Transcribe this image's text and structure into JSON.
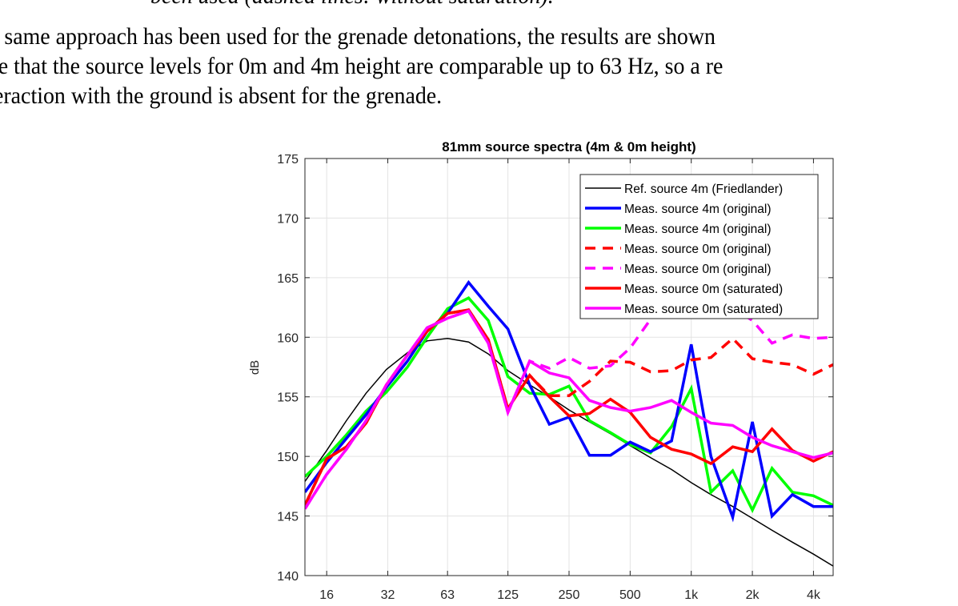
{
  "document": {
    "cut_line": "been used (dashed lines: without saturation).",
    "paragraph_lines": [
      "e same approach has been used for the grenade detonations, the results are shown",
      "te that the source levels for 0m and 4m height are comparable up to 63 Hz, so a re",
      "eraction with the ground is absent for the grenade."
    ]
  },
  "chart_data": {
    "type": "line",
    "title": "81mm source spectra (4m & 0m height)",
    "xlabel": "",
    "ylabel": "dB",
    "x_scale": "log",
    "xlim": [
      12.5,
      5000
    ],
    "ylim": [
      140,
      175
    ],
    "grid": true,
    "legend_position": "top-right",
    "x_ticks": [
      16,
      32,
      63,
      125,
      250,
      500,
      1000,
      2000,
      4000
    ],
    "x_tick_labels": [
      "16",
      "32",
      "63",
      "125",
      "250",
      "500",
      "1k",
      "2k",
      "4k"
    ],
    "y_ticks": [
      140,
      145,
      150,
      155,
      160,
      165,
      170,
      175
    ],
    "y_tick_labels": [
      "140",
      "145",
      "150",
      "155",
      "160",
      "165",
      "170",
      "175"
    ],
    "x": [
      12.5,
      16,
      20,
      25,
      31.5,
      40,
      50,
      63,
      80,
      100,
      125,
      160,
      200,
      250,
      315,
      400,
      500,
      630,
      800,
      1000,
      1250,
      1600,
      2000,
      2500,
      3150,
      4000,
      5000
    ],
    "series": [
      {
        "name": "Ref. source 4m (Friedlander)",
        "color": "#000000",
        "style": "solid",
        "width": "thin",
        "values": [
          147.9,
          150.5,
          153.0,
          155.3,
          157.3,
          158.7,
          159.7,
          159.9,
          159.6,
          158.6,
          157.2,
          156.0,
          155.0,
          153.9,
          152.9,
          151.9,
          150.9,
          149.9,
          148.9,
          147.8,
          146.8,
          145.8,
          144.8,
          143.8,
          142.8,
          141.8,
          140.8
        ]
      },
      {
        "name": "Meas. source 4m (original)",
        "color": "#0000ff",
        "style": "solid",
        "width": "thick",
        "values": [
          147.0,
          149.5,
          151.5,
          153.5,
          155.8,
          158.0,
          160.5,
          162.0,
          164.6,
          162.6,
          160.7,
          156.0,
          152.7,
          153.3,
          150.1,
          150.1,
          151.2,
          150.4,
          151.3,
          159.4,
          150.0,
          144.9,
          152.9,
          145.0,
          146.8,
          145.8,
          145.8
        ]
      },
      {
        "name": "Meas. source 4m (original)",
        "color": "#00ff00",
        "style": "solid",
        "width": "thick",
        "values": [
          148.3,
          150.0,
          151.8,
          153.8,
          155.4,
          157.5,
          160.0,
          162.4,
          163.3,
          161.4,
          156.7,
          155.3,
          155.2,
          155.9,
          153.0,
          152.0,
          151.0,
          150.3,
          152.5,
          155.7,
          147.0,
          148.8,
          145.5,
          149.0,
          147.0,
          146.7,
          145.9
        ]
      },
      {
        "name": "Meas. source 0m (original)",
        "color": "#ff0000",
        "style": "dashed",
        "width": "thick",
        "values": [
          145.9,
          149.8,
          150.8,
          152.8,
          156.0,
          158.5,
          160.5,
          162.0,
          162.3,
          159.8,
          154.0,
          156.8,
          155.1,
          155.1,
          156.3,
          158.0,
          157.9,
          157.1,
          157.2,
          158.1,
          158.3,
          159.9,
          158.2,
          157.9,
          157.7,
          156.9,
          157.7
        ]
      },
      {
        "name": "Meas. source 0m (original)",
        "color": "#ff00ff",
        "style": "dashed",
        "width": "thick",
        "values": [
          145.6,
          148.5,
          150.6,
          153.0,
          156.0,
          158.5,
          160.8,
          161.6,
          162.2,
          159.5,
          153.7,
          158.0,
          157.4,
          158.3,
          157.4,
          157.6,
          159.1,
          161.5,
          163.0,
          164.0,
          163.0,
          162.5,
          161.4,
          159.5,
          160.2,
          159.9,
          160.0
        ]
      },
      {
        "name": "Meas. source 0m (saturated)",
        "color": "#ff0000",
        "style": "solid",
        "width": "thick",
        "values": [
          145.9,
          149.8,
          150.8,
          152.8,
          156.0,
          158.5,
          160.5,
          162.0,
          162.3,
          159.8,
          154.0,
          156.8,
          155.0,
          153.4,
          153.6,
          154.8,
          153.7,
          151.6,
          150.6,
          150.2,
          149.4,
          150.8,
          150.4,
          152.3,
          150.5,
          149.6,
          150.4
        ]
      },
      {
        "name": "Meas. source 0m (saturated)",
        "color": "#ff00ff",
        "style": "solid",
        "width": "thick",
        "values": [
          145.6,
          148.5,
          150.6,
          153.0,
          156.0,
          158.5,
          160.8,
          161.6,
          162.2,
          159.5,
          153.7,
          158.0,
          157.0,
          156.6,
          154.7,
          154.1,
          153.8,
          154.1,
          154.7,
          153.7,
          152.8,
          152.6,
          151.6,
          150.9,
          150.4,
          149.9,
          150.3
        ]
      }
    ]
  }
}
